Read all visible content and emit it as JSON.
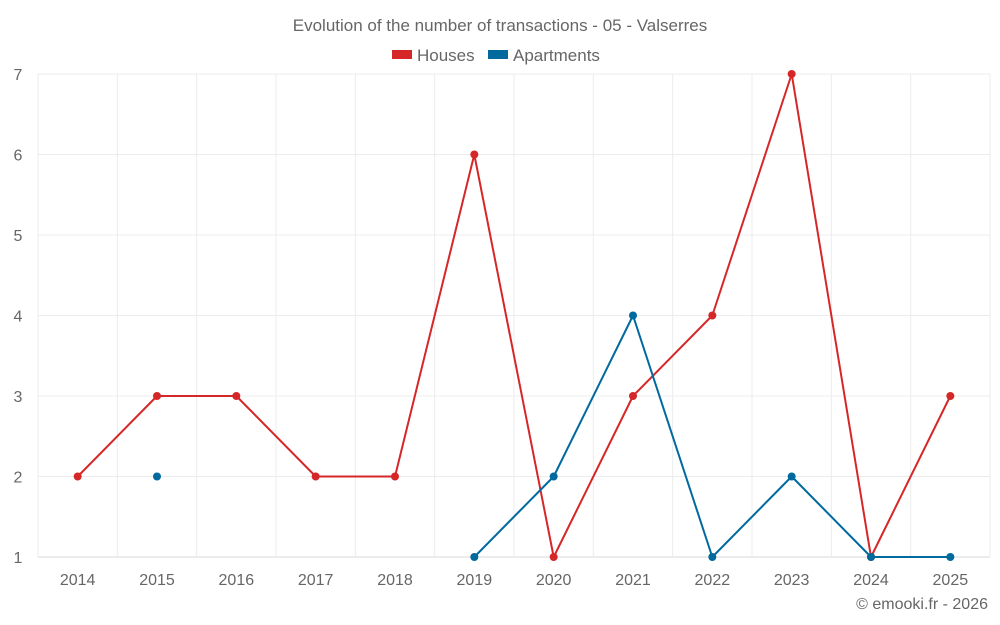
{
  "chart_data": {
    "type": "line",
    "title": "Evolution of the number of transactions - 05 - Valserres",
    "categories": [
      "2014",
      "2015",
      "2016",
      "2017",
      "2018",
      "2019",
      "2020",
      "2021",
      "2022",
      "2023",
      "2024",
      "2025"
    ],
    "series": [
      {
        "name": "Houses",
        "color": "#d62728",
        "values": [
          2,
          3,
          3,
          2,
          2,
          6,
          1,
          3,
          4,
          7,
          1,
          3
        ]
      },
      {
        "name": "Apartments",
        "color": "#006a9e",
        "values": [
          null,
          2,
          null,
          null,
          null,
          1,
          2,
          4,
          1,
          2,
          1,
          1
        ]
      }
    ],
    "ylim": [
      1,
      7
    ],
    "yticks": [
      1,
      2,
      3,
      4,
      5,
      6,
      7
    ],
    "grid": true,
    "legend": "top-center"
  },
  "credit": "© emooki.fr - 2026"
}
